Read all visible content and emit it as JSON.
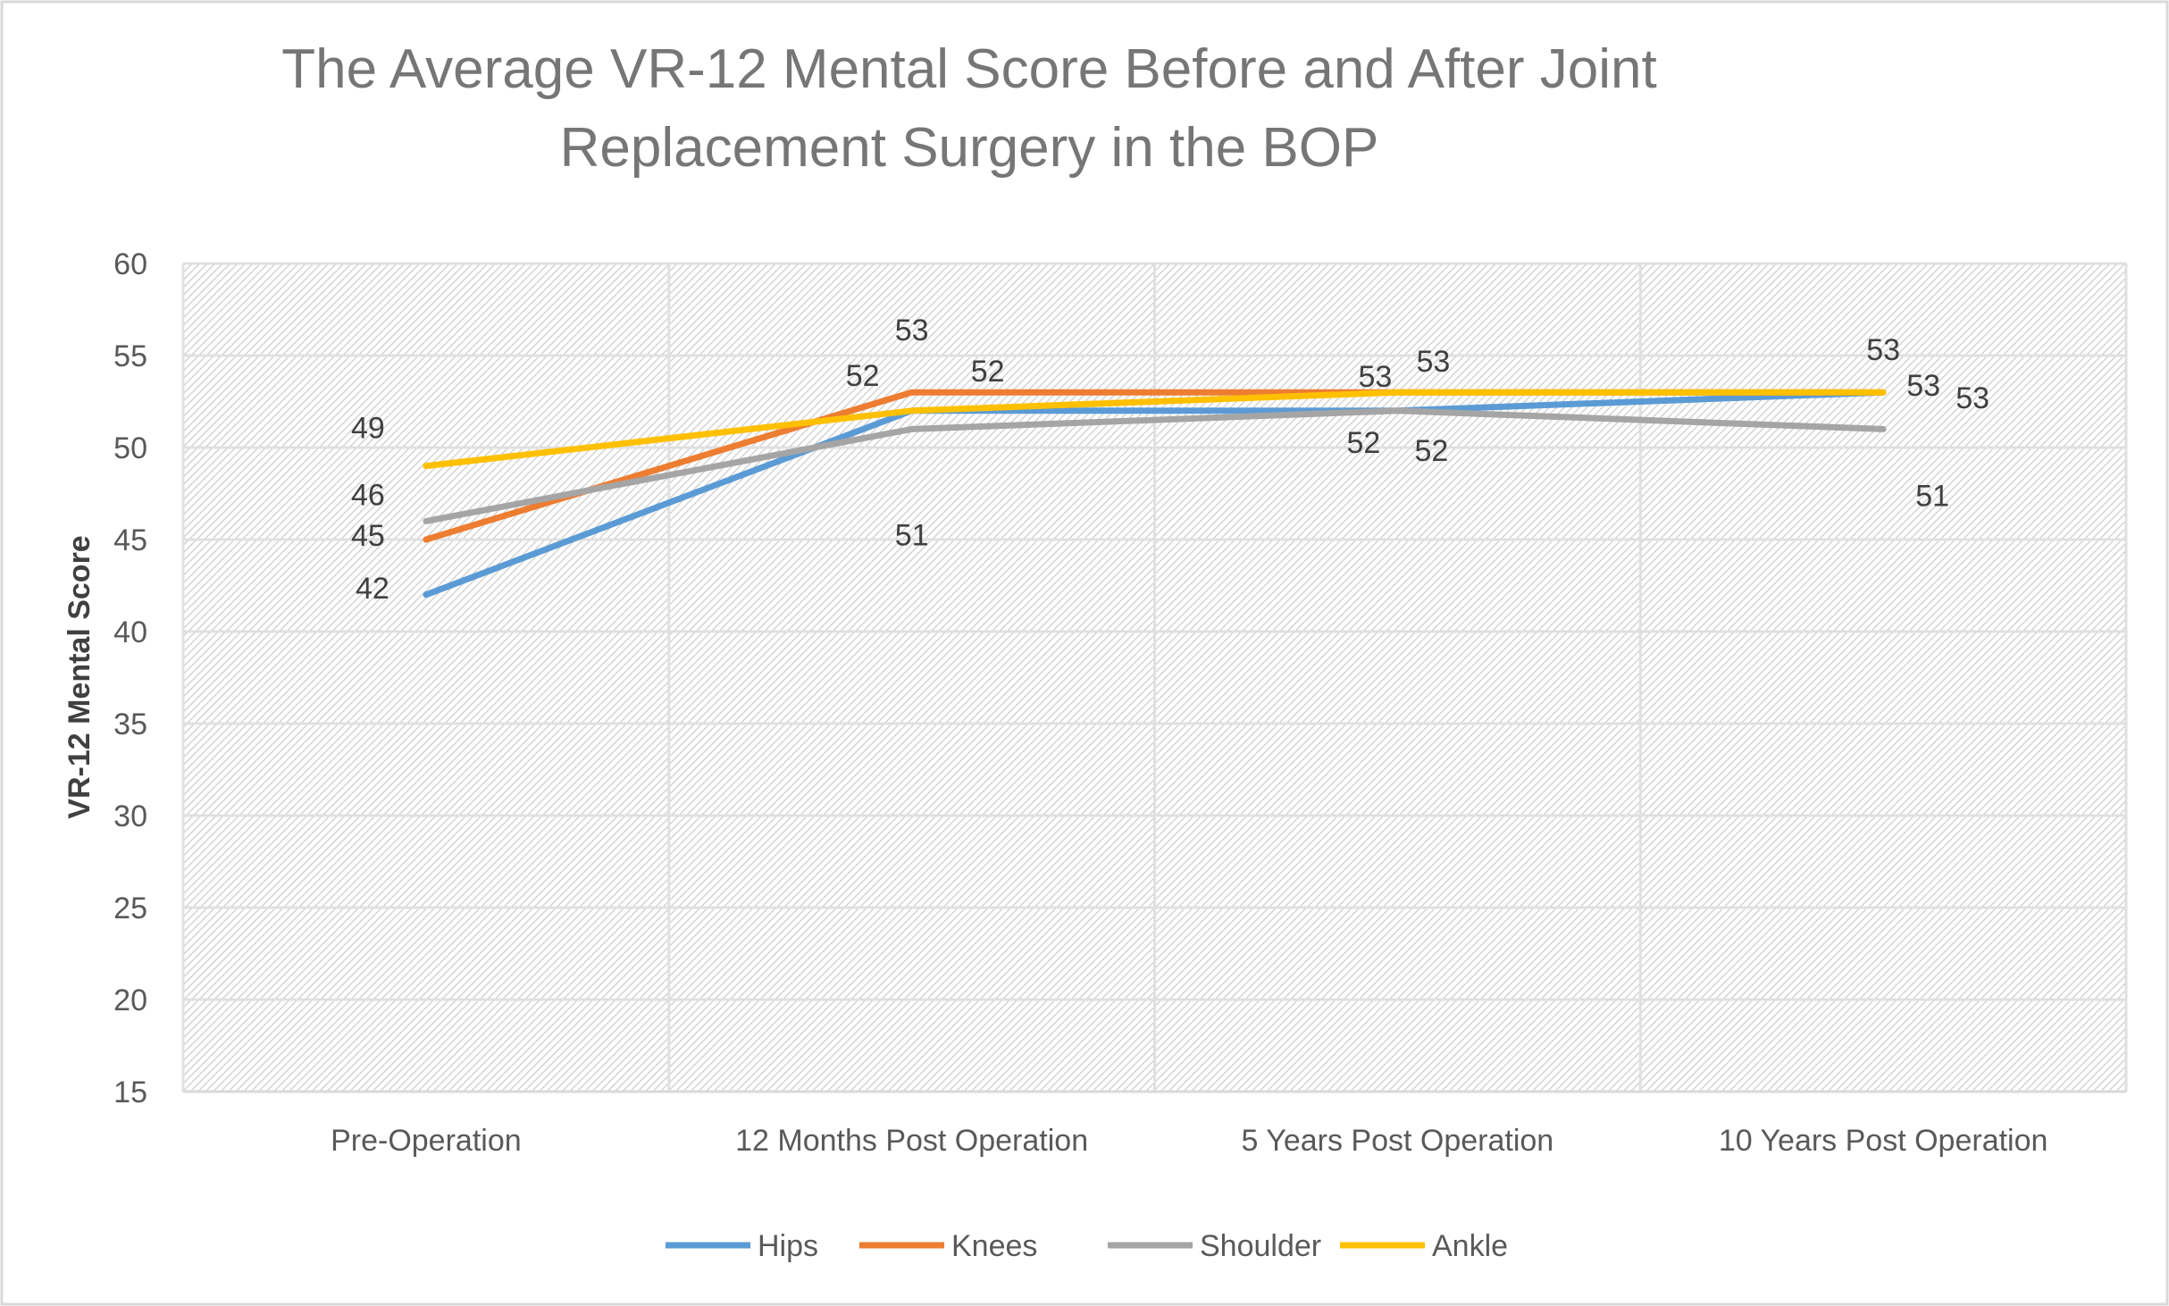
{
  "chart_data": {
    "type": "line",
    "title_lines": [
      "The Average VR-12 Mental Score Before and After Joint",
      "Replacement Surgery in the BOP"
    ],
    "xlabel": "",
    "ylabel": "VR-12 Mental Score",
    "categories": [
      "Pre-Operation",
      "12 Months Post Operation",
      "5 Years Post Operation",
      "10 Years Post Operation"
    ],
    "ylim": [
      15,
      60
    ],
    "yticks": [
      15,
      20,
      25,
      30,
      35,
      40,
      45,
      50,
      55,
      60
    ],
    "grid": true,
    "data_labels": true,
    "legend_position": "bottom",
    "series": [
      {
        "name": "Hips",
        "values": [
          42,
          52,
          52,
          53
        ],
        "color": "#5b9bd5"
      },
      {
        "name": "Knees",
        "values": [
          45,
          53,
          53,
          53
        ],
        "color": "#ed7d31"
      },
      {
        "name": "Shoulder",
        "values": [
          46,
          51,
          52,
          51
        ],
        "color": "#a5a5a5"
      },
      {
        "name": "Ankle",
        "values": [
          49,
          52,
          53,
          53
        ],
        "color": "#ffc000"
      }
    ]
  }
}
